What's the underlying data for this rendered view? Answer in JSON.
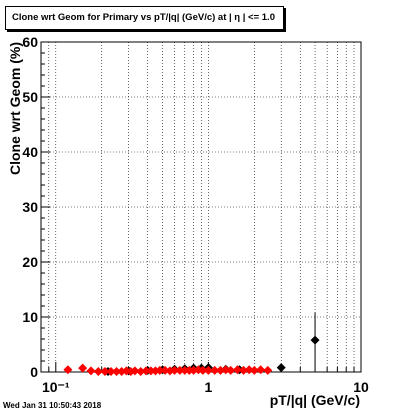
{
  "title": "Clone wrt Geom for Primary vs pT/|q| (GeV/c) at |  η | <= 1.0",
  "footer_timestamp": "Wed Jan 31 10:50:43 2018",
  "chart_data": {
    "type": "scatter",
    "title": "Clone wrt Geom for Primary vs pT/|q| (GeV/c) at |  η | <= 1.0",
    "xlabel": "pT/|q| (GeV/c)",
    "ylabel": "Clone wrt Geom (%)",
    "x_scale": "log",
    "xlim": [
      0.08,
      10
    ],
    "ylim": [
      0,
      60
    ],
    "x_tick_labels": [
      "10⁻¹",
      "1",
      "10"
    ],
    "y_tick_labels": [
      "0",
      "10",
      "20",
      "30",
      "40",
      "50",
      "60"
    ],
    "grid": true,
    "legend": "none",
    "series": [
      {
        "color": "#000000",
        "marker": "diamond",
        "points": [
          {
            "x": 0.22,
            "y": 0.1
          },
          {
            "x": 0.3,
            "y": 0.2
          },
          {
            "x": 0.4,
            "y": 0.3
          },
          {
            "x": 0.5,
            "y": 0.4
          },
          {
            "x": 0.6,
            "y": 0.5
          },
          {
            "x": 0.7,
            "y": 0.6
          },
          {
            "x": 0.8,
            "y": 0.7
          },
          {
            "x": 0.9,
            "y": 0.7
          },
          {
            "x": 1.0,
            "y": 0.8
          },
          {
            "x": 1.3,
            "y": 0.5
          },
          {
            "x": 1.6,
            "y": 0.4
          },
          {
            "x": 3.0,
            "y": 0.8
          },
          {
            "x": 5.0,
            "y": 5.8,
            "err": 5.0
          }
        ]
      },
      {
        "color": "#ff0000",
        "marker": "diamond",
        "points": [
          {
            "x": 0.12,
            "y": 0.4
          },
          {
            "x": 0.15,
            "y": 0.7
          },
          {
            "x": 0.17,
            "y": 0.2
          },
          {
            "x": 0.19,
            "y": 0.1
          },
          {
            "x": 0.21,
            "y": 0.1
          },
          {
            "x": 0.23,
            "y": 0.1
          },
          {
            "x": 0.25,
            "y": 0.1
          },
          {
            "x": 0.27,
            "y": 0.1
          },
          {
            "x": 0.29,
            "y": 0.2
          },
          {
            "x": 0.31,
            "y": 0.1
          },
          {
            "x": 0.33,
            "y": 0.2
          },
          {
            "x": 0.36,
            "y": 0.1
          },
          {
            "x": 0.39,
            "y": 0.2
          },
          {
            "x": 0.42,
            "y": 0.2
          },
          {
            "x": 0.45,
            "y": 0.2
          },
          {
            "x": 0.48,
            "y": 0.3
          },
          {
            "x": 0.52,
            "y": 0.3
          },
          {
            "x": 0.56,
            "y": 0.2
          },
          {
            "x": 0.6,
            "y": 0.3
          },
          {
            "x": 0.65,
            "y": 0.3
          },
          {
            "x": 0.7,
            "y": 0.3
          },
          {
            "x": 0.75,
            "y": 0.3
          },
          {
            "x": 0.8,
            "y": 0.3
          },
          {
            "x": 0.86,
            "y": 0.4
          },
          {
            "x": 0.92,
            "y": 0.3
          },
          {
            "x": 1.0,
            "y": 0.3
          },
          {
            "x": 1.1,
            "y": 0.3
          },
          {
            "x": 1.2,
            "y": 0.3
          },
          {
            "x": 1.3,
            "y": 0.4
          },
          {
            "x": 1.4,
            "y": 0.3
          },
          {
            "x": 1.55,
            "y": 0.4
          },
          {
            "x": 1.7,
            "y": 0.3
          },
          {
            "x": 1.85,
            "y": 0.4
          },
          {
            "x": 2.0,
            "y": 0.3
          },
          {
            "x": 2.2,
            "y": 0.4
          },
          {
            "x": 2.45,
            "y": 0.3
          }
        ]
      }
    ]
  }
}
